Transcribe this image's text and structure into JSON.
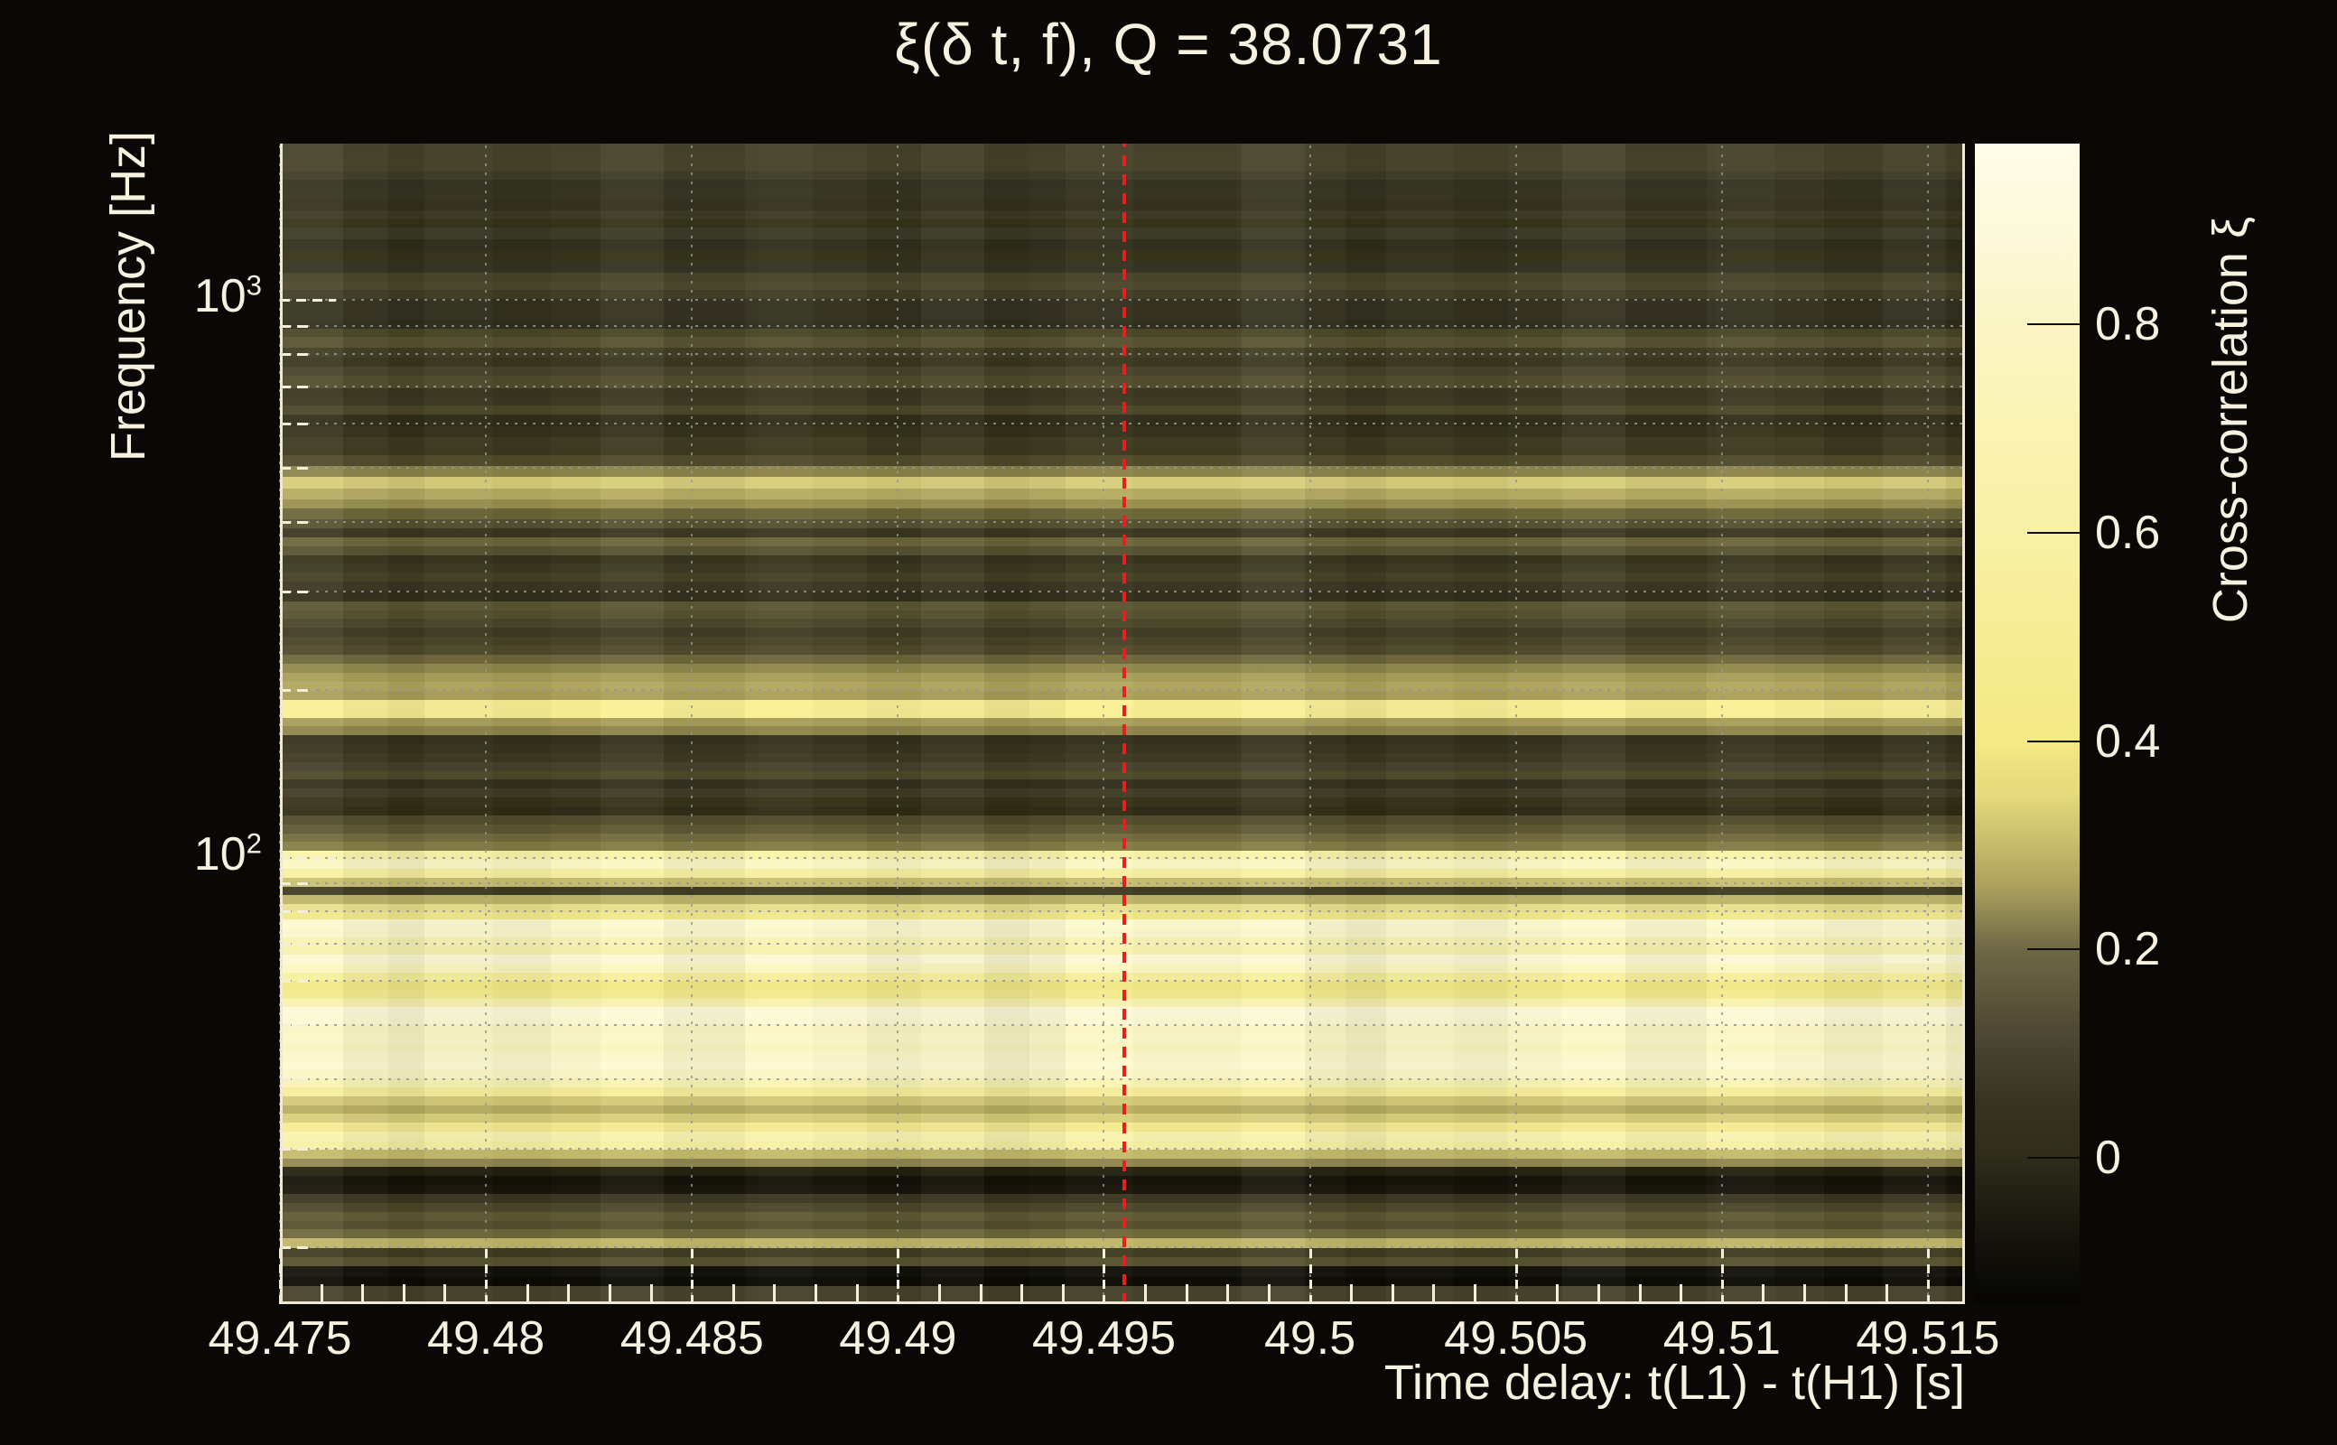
{
  "title": "ξ(δ t, f), Q = 38.0731",
  "colors": {
    "background": "#090806",
    "text": "#f7f2df",
    "spine": "#efe9d2",
    "grid_dot": "#96958e",
    "tick": "#f4efdb",
    "marker_red": "#e81f1f"
  },
  "axes": {
    "x": {
      "label": "Time delay: t(L1) - t(H1) [s]",
      "min": 49.475,
      "max": 49.5159,
      "major_ticks": [
        {
          "v": 49.475,
          "label": "49.475"
        },
        {
          "v": 49.48,
          "label": "49.48"
        },
        {
          "v": 49.485,
          "label": "49.485"
        },
        {
          "v": 49.49,
          "label": "49.49"
        },
        {
          "v": 49.495,
          "label": "49.495"
        },
        {
          "v": 49.5,
          "label": "49.5"
        },
        {
          "v": 49.505,
          "label": "49.505"
        },
        {
          "v": 49.51,
          "label": "49.51"
        },
        {
          "v": 49.515,
          "label": "49.515"
        }
      ],
      "minor_step": 0.001
    },
    "y": {
      "label": "Frequency [Hz]",
      "scale": "log",
      "min": 15.8,
      "max": 1910,
      "major_ticks": [
        {
          "v": 1000,
          "base": "10",
          "exp": "3"
        },
        {
          "v": 100,
          "base": "10",
          "exp": "2"
        }
      ],
      "minor_gridline_freqs": [
        900,
        800,
        700,
        600,
        500,
        400,
        300,
        200,
        90,
        80,
        70,
        60,
        50,
        40,
        30,
        20
      ]
    }
  },
  "colorbar": {
    "label": "Cross-correlation ξ",
    "vmin": -0.14,
    "vmax": 0.973,
    "ticks": [
      {
        "value": 0.8,
        "label": "0.8"
      },
      {
        "value": 0.6,
        "label": "0.6"
      },
      {
        "value": 0.4,
        "label": "0.4"
      },
      {
        "value": 0.2,
        "label": "0.2"
      },
      {
        "value": 0,
        "label": "0"
      }
    ],
    "gradient": [
      [
        0,
        "#fffce9"
      ],
      [
        0.08,
        "#fdf9da"
      ],
      [
        0.156,
        "#fbf5c5"
      ],
      [
        0.25,
        "#faf3b2"
      ],
      [
        0.335,
        "#f8f0a5"
      ],
      [
        0.42,
        "#f6ed96"
      ],
      [
        0.515,
        "#f3e985"
      ],
      [
        0.56,
        "#e5da7c"
      ],
      [
        0.6,
        "#c9be6c"
      ],
      [
        0.64,
        "#aba15c"
      ],
      [
        0.695,
        "#6e6745"
      ],
      [
        0.74,
        "#5a5339"
      ],
      [
        0.78,
        "#474231"
      ],
      [
        0.83,
        "#37331f"
      ],
      [
        0.874,
        "#2f2c1b"
      ],
      [
        0.92,
        "#1d1b11"
      ],
      [
        0.96,
        "#100f08"
      ],
      [
        1,
        "#060503"
      ]
    ]
  },
  "marker": {
    "x_value": 49.4955
  },
  "chart_data": {
    "type": "heatmap",
    "title": "ξ(δ t, f), Q = 38.0731",
    "xlabel": "Time delay: t(L1) - t(H1) [s]",
    "ylabel": "Frequency [Hz]",
    "x_range": [
      49.475,
      49.5159
    ],
    "y_range_hz": [
      15.8,
      1910
    ],
    "y_scale": "log",
    "colorbar_label": "Cross-correlation ξ",
    "colorbar_range": [
      -0.14,
      0.973
    ],
    "grid": "dotted, vertical at x major ticks, horizontal at log minor+major ticks",
    "note": "rows ordered top (high frequency) to bottom (low frequency); each row = [relative_height, display_color, approx_mean_xi]",
    "bands": [
      [
        13,
        "#45422a",
        0.07
      ],
      [
        18,
        "#474329",
        0.07
      ],
      [
        10,
        "#3e3b26",
        0.05
      ],
      [
        10,
        "#343220",
        0.02
      ],
      [
        12,
        "#363420",
        0.03
      ],
      [
        12,
        "#34301e",
        0.02
      ],
      [
        10,
        "#3b3823",
        0.04
      ],
      [
        10,
        "#343218",
        0.02
      ],
      [
        13,
        "#3b3926",
        0.04
      ],
      [
        13,
        "#302e1c",
        0.0
      ],
      [
        12,
        "#353219",
        0.02
      ],
      [
        12,
        "#343220",
        0.02
      ],
      [
        10,
        "#464329",
        0.07
      ],
      [
        10,
        "#4b472c",
        0.08
      ],
      [
        10,
        "#403d26",
        0.05
      ],
      [
        23,
        "#343120",
        0.02
      ],
      [
        10,
        "#302e1c",
        0.0
      ],
      [
        10,
        "#494526",
        0.08
      ],
      [
        12,
        "#565130",
        0.11
      ],
      [
        11,
        "#403c23",
        0.05
      ],
      [
        10,
        "#3a371f",
        0.04
      ],
      [
        10,
        "#46422a",
        0.07
      ],
      [
        14,
        "#504b2c",
        0.1
      ],
      [
        10,
        "#39361e",
        0.03
      ],
      [
        10,
        "#3c3823",
        0.04
      ],
      [
        10,
        "#4b4627",
        0.08
      ],
      [
        13,
        "#302e19",
        0.0
      ],
      [
        12,
        "#35321a",
        0.02
      ],
      [
        11,
        "#3d3a21",
        0.05
      ],
      [
        10,
        "#3c381f",
        0.04
      ],
      [
        12,
        "#4f4a29",
        0.09
      ],
      [
        12,
        "#8b8349",
        0.22
      ],
      [
        13,
        "#d7cd7b",
        0.4
      ],
      [
        12,
        "#b6ac62",
        0.3
      ],
      [
        11,
        "#99904f",
        0.24
      ],
      [
        12,
        "#6c6537",
        0.15
      ],
      [
        10,
        "#565130",
        0.11
      ],
      [
        10,
        "#3a3620",
        0.03
      ],
      [
        10,
        "#6b653a",
        0.15
      ],
      [
        10,
        "#565130",
        0.11
      ],
      [
        10,
        "#35321d",
        0.02
      ],
      [
        10,
        "#3b3920",
        0.04
      ],
      [
        10,
        "#434024",
        0.06
      ],
      [
        10,
        "#3a3522",
        0.03
      ],
      [
        12,
        "#312e1c",
        0.0
      ],
      [
        10,
        "#5b5631",
        0.12
      ],
      [
        10,
        "#55502e",
        0.11
      ],
      [
        10,
        "#4a4628",
        0.08
      ],
      [
        10,
        "#3f3b24",
        0.05
      ],
      [
        10,
        "#484327",
        0.08
      ],
      [
        10,
        "#504a2b",
        0.1
      ],
      [
        10,
        "#6d6639",
        0.16
      ],
      [
        11,
        "#8f874c",
        0.22
      ],
      [
        10,
        "#a89d58",
        0.28
      ],
      [
        10,
        "#b1a75e",
        0.3
      ],
      [
        10,
        "#aaa059",
        0.28
      ],
      [
        10,
        "#faf096",
        0.62
      ],
      [
        10,
        "#f9ef94",
        0.6
      ],
      [
        10,
        "#a89e58",
        0.28
      ],
      [
        10,
        "#8d854a",
        0.22
      ],
      [
        10,
        "#332f1c",
        0.01
      ],
      [
        10,
        "#37341e",
        0.03
      ],
      [
        10,
        "#3c3820",
        0.04
      ],
      [
        10,
        "#45402a",
        0.07
      ],
      [
        10,
        "#4c4828",
        0.09
      ],
      [
        10,
        "#332f1d",
        0.01
      ],
      [
        10,
        "#3f3b24",
        0.05
      ],
      [
        10,
        "#353218",
        0.02
      ],
      [
        10,
        "#2f2c17",
        0.0
      ],
      [
        10,
        "#4f4a2a",
        0.09
      ],
      [
        10,
        "#5d5731",
        0.13
      ],
      [
        10,
        "#726a3c",
        0.17
      ],
      [
        10,
        "#837b45",
        0.2
      ],
      [
        10,
        "#faf4a8",
        0.68
      ],
      [
        10,
        "#fcf7c4",
        0.8
      ],
      [
        10,
        "#f7f0a0",
        0.65
      ],
      [
        10,
        "#c9bf70",
        0.36
      ],
      [
        10,
        "#403c22",
        0.05
      ],
      [
        10,
        "#bdb469",
        0.33
      ],
      [
        9,
        "#e8e08b",
        0.45
      ],
      [
        8,
        "#f2e98c",
        0.5
      ],
      [
        10,
        "#fdf9d0",
        0.85
      ],
      [
        10,
        "#fcf8cc",
        0.83
      ],
      [
        10,
        "#f9f3b2",
        0.72
      ],
      [
        10,
        "#f8f2ae",
        0.7
      ],
      [
        10,
        "#fdf9d4",
        0.87
      ],
      [
        10,
        "#fbf6c0",
        0.78
      ],
      [
        9,
        "#f6ef9c",
        0.62
      ],
      [
        10,
        "#f1e885",
        0.48
      ],
      [
        10,
        "#f3ea8e",
        0.52
      ],
      [
        10,
        "#f8f2b0",
        0.7
      ],
      [
        10,
        "#fdfad8",
        0.9
      ],
      [
        10,
        "#fdf9d2",
        0.86
      ],
      [
        10,
        "#fbf6c2",
        0.79
      ],
      [
        10,
        "#fcf8c8",
        0.82
      ],
      [
        10,
        "#fbf6c0",
        0.78
      ],
      [
        10,
        "#fcf8ca",
        0.82
      ],
      [
        10,
        "#fdf9d0",
        0.85
      ],
      [
        10,
        "#fcf7c6",
        0.8
      ],
      [
        10,
        "#f9f3b4",
        0.73
      ],
      [
        10,
        "#f5ed9a",
        0.6
      ],
      [
        10,
        "#d3c977",
        0.4
      ],
      [
        10,
        "#b8ae62",
        0.31
      ],
      [
        10,
        "#d8ce7a",
        0.41
      ],
      [
        10,
        "#f4eb90",
        0.55
      ],
      [
        10,
        "#f9f3b0",
        0.71
      ],
      [
        10,
        "#f7f0a4",
        0.66
      ],
      [
        10,
        "#c4ba6c",
        0.35
      ],
      [
        10,
        "#8f874c",
        0.22
      ],
      [
        10,
        "#23210f",
        -0.05
      ],
      [
        10,
        "#121107",
        -0.09
      ],
      [
        10,
        "#16150a",
        -0.08
      ],
      [
        10,
        "#3a3620",
        0.03
      ],
      [
        10,
        "#4c4729",
        0.09
      ],
      [
        10,
        "#5f5933",
        0.13
      ],
      [
        10,
        "#554f2e",
        0.11
      ],
      [
        10,
        "#6f683a",
        0.16
      ],
      [
        11,
        "#c0b668",
        0.34
      ],
      [
        10,
        "#403c22",
        0.05
      ],
      [
        10,
        "#56512d",
        0.11
      ],
      [
        13,
        "#11100a",
        -0.1
      ],
      [
        10,
        "#0a0903",
        -0.12
      ],
      [
        20,
        "#45412a",
        0.07
      ]
    ]
  }
}
